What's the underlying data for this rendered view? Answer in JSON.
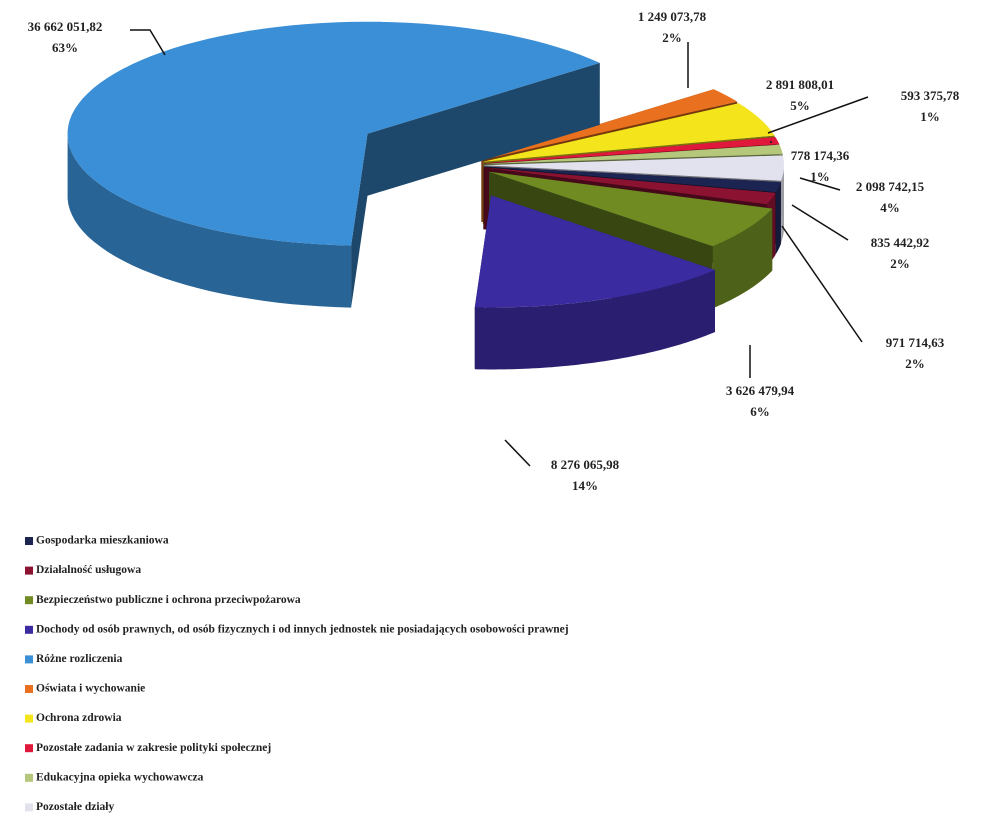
{
  "chart_data": {
    "type": "pie3d",
    "categories": [
      "Gospodarka mieszkaniowa",
      "Działalność usługowa",
      "Bezpieczeństwo publiczne i ochrona przeciwpożarowa",
      "Dochody od osób prawnych, od osób fizycznych i od innych jednostek nie posiadających osobowości prawnej",
      "Różne rozliczenia",
      "Oświata i wychowanie",
      "Ochrona zdrowia",
      "Pozostałe zadania w zakresie polityki społecznej",
      "Edukacyjna opieka wychowawcza",
      "Pozostałe działy"
    ],
    "values": [
      835442.92,
      971714.63,
      3626479.94,
      8276065.98,
      36662051.82,
      1249073.78,
      2891808.01,
      593375.78,
      778174.36,
      2098742.15
    ],
    "value_labels": [
      "835 442,92",
      "971 714,63",
      "3 626 479,94",
      "8 276 065,98",
      "36 662 051,82",
      "1 249 073,78",
      "2 891 808,01",
      "593 375,78",
      "778 174,36",
      "2 098 742,15"
    ],
    "percent_labels": [
      "2%",
      "2%",
      "6%",
      "14%",
      "63%",
      "2%",
      "5%",
      "1%",
      "1%",
      "4%"
    ],
    "colors": [
      "#1c2552",
      "#8c1232",
      "#6f8b22",
      "#3b2ba0",
      "#3a8fd6",
      "#e8701e",
      "#f4e41c",
      "#e0183c",
      "#b4c77a",
      "#e2e2ee"
    ],
    "legend": "bottom-left"
  }
}
